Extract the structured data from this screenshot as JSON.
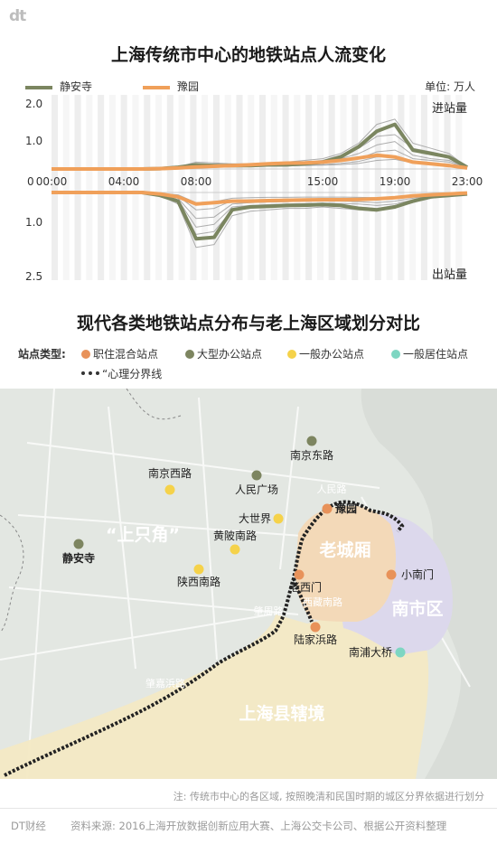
{
  "brand_logo": "dt",
  "chart_data": [
    {
      "type": "line",
      "title": "上海传统市中心的地铁站点人流变化",
      "unit_label": "单位: 万人",
      "x": [
        "00:00",
        "01:00",
        "02:00",
        "03:00",
        "04:00",
        "05:00",
        "06:00",
        "07:00",
        "08:00",
        "09:00",
        "10:00",
        "11:00",
        "12:00",
        "13:00",
        "14:00",
        "15:00",
        "16:00",
        "17:00",
        "18:00",
        "19:00",
        "20:00",
        "21:00",
        "22:00",
        "23:00"
      ],
      "x_tick_labels": [
        "00:00",
        "04:00",
        "08:00",
        "15:00",
        "19:00",
        "23:00"
      ],
      "y_tick_labels_top": [
        "2.0",
        "1.0"
      ],
      "y_tick_labels_bottom": [
        "0",
        "1.0",
        "2.5"
      ],
      "panel_labels": {
        "entry": "进站量",
        "exit": "出站量"
      },
      "ylim_entry": [
        0,
        2.0
      ],
      "ylim_exit": [
        0,
        2.5
      ],
      "series": [
        {
          "name": "静安寺",
          "color": "#7b8660",
          "highlight": true,
          "entry": [
            0,
            0,
            0,
            0,
            0,
            0,
            0.01,
            0.05,
            0.12,
            0.1,
            0.1,
            0.1,
            0.12,
            0.12,
            0.15,
            0.2,
            0.35,
            0.65,
            1.1,
            1.3,
            0.55,
            0.45,
            0.35,
            0.05
          ],
          "exit": [
            0,
            0,
            0,
            0,
            0,
            0,
            0.1,
            0.3,
            1.6,
            1.55,
            0.6,
            0.5,
            0.48,
            0.45,
            0.44,
            0.42,
            0.45,
            0.55,
            0.6,
            0.5,
            0.3,
            0.15,
            0.1,
            0.05
          ]
        },
        {
          "name": "豫园",
          "color": "#f0a05a",
          "highlight": true,
          "entry": [
            0,
            0,
            0,
            0,
            0,
            0,
            0.01,
            0.03,
            0.06,
            0.08,
            0.1,
            0.12,
            0.15,
            0.17,
            0.18,
            0.2,
            0.25,
            0.32,
            0.4,
            0.35,
            0.2,
            0.15,
            0.1,
            0.03
          ],
          "exit": [
            0,
            0,
            0,
            0,
            0,
            0,
            0.05,
            0.15,
            0.4,
            0.35,
            0.3,
            0.3,
            0.28,
            0.27,
            0.26,
            0.25,
            0.25,
            0.24,
            0.22,
            0.18,
            0.12,
            0.08,
            0.05,
            0.02
          ]
        },
        {
          "name": "",
          "color": "#9a9a9a",
          "highlight": false,
          "entry": [
            0,
            0,
            0,
            0,
            0,
            0,
            0.01,
            0.06,
            0.2,
            0.18,
            0.15,
            0.15,
            0.17,
            0.2,
            0.25,
            0.3,
            0.45,
            0.75,
            1.3,
            1.45,
            0.75,
            0.6,
            0.45,
            0.05
          ],
          "exit": [
            0,
            0,
            0,
            0,
            0,
            0,
            0.1,
            0.4,
            1.9,
            1.8,
            0.8,
            0.65,
            0.6,
            0.55,
            0.55,
            0.5,
            0.55,
            0.6,
            0.65,
            0.5,
            0.35,
            0.2,
            0.12,
            0.05
          ]
        },
        {
          "name": "",
          "color": "#9a9a9a",
          "highlight": false,
          "entry": [
            0,
            0,
            0,
            0,
            0,
            0,
            0.01,
            0.04,
            0.1,
            0.12,
            0.12,
            0.13,
            0.15,
            0.16,
            0.18,
            0.22,
            0.3,
            0.45,
            0.7,
            0.8,
            0.4,
            0.3,
            0.25,
            0.04
          ],
          "exit": [
            0,
            0,
            0,
            0,
            0,
            0,
            0.08,
            0.25,
            1.2,
            1.1,
            0.5,
            0.45,
            0.42,
            0.4,
            0.38,
            0.37,
            0.38,
            0.4,
            0.45,
            0.4,
            0.25,
            0.15,
            0.08,
            0.03
          ]
        },
        {
          "name": "",
          "color": "#9a9a9a",
          "highlight": false,
          "entry": [
            0,
            0,
            0,
            0,
            0,
            0,
            0.01,
            0.03,
            0.08,
            0.1,
            0.1,
            0.11,
            0.12,
            0.13,
            0.15,
            0.17,
            0.22,
            0.3,
            0.5,
            0.55,
            0.3,
            0.25,
            0.2,
            0.03
          ],
          "exit": [
            0,
            0,
            0,
            0,
            0,
            0,
            0.05,
            0.2,
            0.9,
            0.85,
            0.4,
            0.35,
            0.33,
            0.32,
            0.3,
            0.3,
            0.3,
            0.32,
            0.35,
            0.3,
            0.2,
            0.12,
            0.07,
            0.02
          ]
        },
        {
          "name": "",
          "color": "#9a9a9a",
          "highlight": false,
          "entry": [
            0,
            0,
            0,
            0,
            0,
            0,
            0.01,
            0.02,
            0.05,
            0.06,
            0.07,
            0.08,
            0.1,
            0.1,
            0.12,
            0.13,
            0.16,
            0.22,
            0.35,
            0.38,
            0.22,
            0.18,
            0.14,
            0.02
          ],
          "exit": [
            0,
            0,
            0,
            0,
            0,
            0,
            0.04,
            0.12,
            0.6,
            0.55,
            0.28,
            0.25,
            0.24,
            0.23,
            0.22,
            0.22,
            0.22,
            0.24,
            0.26,
            0.22,
            0.15,
            0.1,
            0.05,
            0.02
          ]
        },
        {
          "name": "",
          "color": "#9a9a9a",
          "highlight": false,
          "entry": [
            0,
            0,
            0,
            0,
            0,
            0,
            0.01,
            0.02,
            0.04,
            0.05,
            0.06,
            0.07,
            0.08,
            0.09,
            0.1,
            0.11,
            0.13,
            0.16,
            0.25,
            0.28,
            0.18,
            0.14,
            0.1,
            0.02
          ],
          "exit": [
            0,
            0,
            0,
            0,
            0,
            0,
            0.03,
            0.08,
            0.35,
            0.32,
            0.2,
            0.18,
            0.17,
            0.17,
            0.16,
            0.16,
            0.16,
            0.17,
            0.18,
            0.16,
            0.1,
            0.07,
            0.04,
            0.01
          ]
        },
        {
          "name": "",
          "color": "#9a9a9a",
          "highlight": false,
          "entry": [
            0,
            0,
            0,
            0,
            0,
            0,
            0.01,
            0.04,
            0.15,
            0.14,
            0.12,
            0.12,
            0.14,
            0.15,
            0.2,
            0.25,
            0.4,
            0.6,
            0.95,
            1.0,
            0.6,
            0.5,
            0.38,
            0.04
          ],
          "exit": [
            0,
            0,
            0,
            0,
            0,
            0,
            0.08,
            0.3,
            1.45,
            1.35,
            0.6,
            0.52,
            0.5,
            0.47,
            0.45,
            0.45,
            0.47,
            0.5,
            0.55,
            0.45,
            0.3,
            0.17,
            0.1,
            0.04
          ]
        }
      ]
    }
  ],
  "map": {
    "title": "现代各类地铁站点分布与老上海区域划分对比",
    "legend_title": "站点类型:",
    "legend": [
      {
        "label": "职住混合站点",
        "color": "#e8925a"
      },
      {
        "label": "大型办公站点",
        "color": "#7d8560"
      },
      {
        "label": "一般办公站点",
        "color": "#f5d24a"
      },
      {
        "label": "一般居住站点",
        "color": "#7ed6c2"
      }
    ],
    "boundary_label": "“心理分界线",
    "regions": {
      "shangzhijiao": "“上只角”",
      "laochengxiang": "老城厢",
      "nanshiqu": "南市区",
      "shanghaixian": "上海县辖境"
    },
    "streets": [
      "人民路",
      "西藏南路",
      "肇周路",
      "肇嘉浜路"
    ],
    "stations": [
      {
        "label": "南京东路",
        "type": "大型办公站点"
      },
      {
        "label": "南京西路",
        "type": "一般办公站点"
      },
      {
        "label": "人民广场",
        "type": "大型办公站点"
      },
      {
        "label": "大世界",
        "type": "一般办公站点"
      },
      {
        "label": "豫园",
        "type": "职住混合站点"
      },
      {
        "label": "黄陂南路",
        "type": "一般办公站点"
      },
      {
        "label": "静安寺",
        "type": "大型办公站点"
      },
      {
        "label": "陕西南路",
        "type": "一般办公站点"
      },
      {
        "label": "老西门",
        "type": "职住混合站点"
      },
      {
        "label": "小南门",
        "type": "职住混合站点"
      },
      {
        "label": "陆家浜路",
        "type": "职住混合站点"
      },
      {
        "label": "南浦大桥",
        "type": "一般居住站点"
      }
    ]
  },
  "note": "注: 传统市中心的各区域, 按照晚清和民国时期的城区分界依据进行划分",
  "footer": {
    "brand": "DT财经",
    "source": "资料来源: 2016上海开放数据创新应用大赛、上海公交卡公司、根据公开资料整理"
  }
}
